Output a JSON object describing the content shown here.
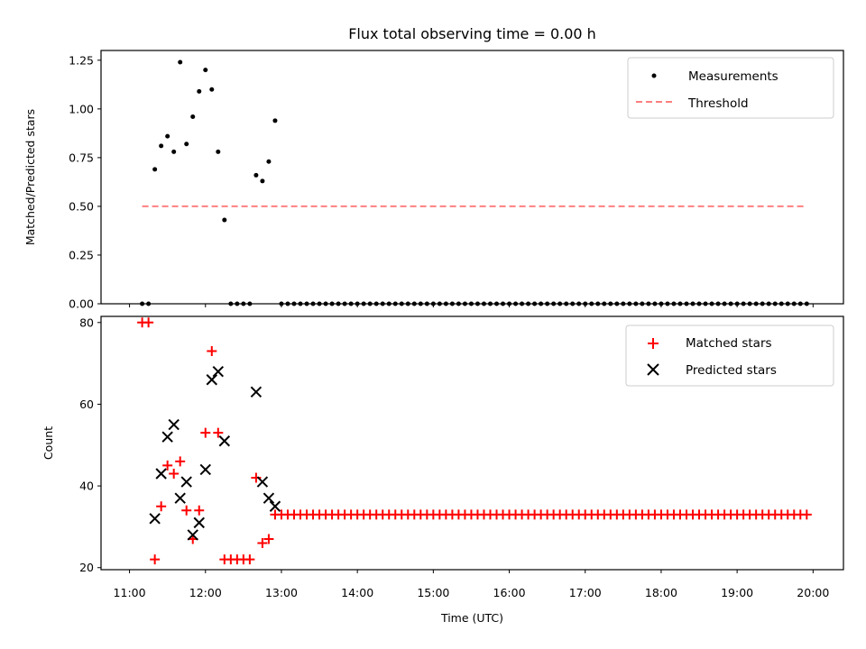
{
  "title": "Flux total observing time = 0.00 h",
  "xlabel": "Time (UTC)",
  "colors": {
    "matched": "#ff0000",
    "predicted": "#000000",
    "threshold": "#ff7f7f",
    "measurements": "#000000"
  },
  "chart_data": [
    {
      "type": "scatter",
      "ylabel": "Matched/Predicted stars",
      "ylim": [
        0,
        1.3
      ],
      "yticks": [
        "0.00",
        "0.25",
        "0.50",
        "0.75",
        "1.00",
        "1.25"
      ],
      "legend": "top-right",
      "series": [
        {
          "name": "Measurements",
          "x": [
            "11:10",
            "11:15",
            "11:20",
            "11:25",
            "11:30",
            "11:35",
            "11:40",
            "11:45",
            "11:50",
            "11:55",
            "12:00",
            "12:05",
            "12:10",
            "12:15",
            "12:20",
            "12:25",
            "12:30",
            "12:35",
            "12:40",
            "12:45",
            "12:50",
            "12:55",
            "13:00",
            "13:05",
            "13:10",
            "13:15",
            "13:20",
            "13:25",
            "13:30",
            "13:35",
            "13:40",
            "13:45",
            "13:50",
            "13:55",
            "14:00",
            "14:05",
            "14:10",
            "14:15",
            "14:20",
            "14:25",
            "14:30",
            "14:35",
            "14:40",
            "14:45",
            "14:50",
            "14:55",
            "15:00",
            "15:05",
            "15:10",
            "15:15",
            "15:20",
            "15:25",
            "15:30",
            "15:35",
            "15:40",
            "15:45",
            "15:50",
            "15:55",
            "16:00",
            "16:05",
            "16:10",
            "16:15",
            "16:20",
            "16:25",
            "16:30",
            "16:35",
            "16:40",
            "16:45",
            "16:50",
            "16:55",
            "17:00",
            "17:05",
            "17:10",
            "17:15",
            "17:20",
            "17:25",
            "17:30",
            "17:35",
            "17:40",
            "17:45",
            "17:50",
            "17:55",
            "18:00",
            "18:05",
            "18:10",
            "18:15",
            "18:20",
            "18:25",
            "18:30",
            "18:35",
            "18:40",
            "18:45",
            "18:50",
            "18:55",
            "19:00",
            "19:05",
            "19:10",
            "19:15",
            "19:20",
            "19:25",
            "19:30",
            "19:35",
            "19:40",
            "19:45",
            "19:50",
            "19:55"
          ],
          "y": [
            0,
            0,
            0.69,
            0.81,
            0.86,
            0.78,
            1.24,
            0.82,
            0.96,
            1.09,
            1.2,
            1.1,
            0.78,
            0.43,
            0,
            0,
            0,
            0,
            0.66,
            0.63,
            0.73,
            0.94,
            0,
            0,
            0,
            0,
            0,
            0,
            0,
            0,
            0,
            0,
            0,
            0,
            0,
            0,
            0,
            0,
            0,
            0,
            0,
            0,
            0,
            0,
            0,
            0,
            0,
            0,
            0,
            0,
            0,
            0,
            0,
            0,
            0,
            0,
            0,
            0,
            0,
            0,
            0,
            0,
            0,
            0,
            0,
            0,
            0,
            0,
            0,
            0,
            0,
            0,
            0,
            0,
            0,
            0,
            0,
            0,
            0,
            0,
            0,
            0,
            0,
            0,
            0,
            0,
            0,
            0,
            0,
            0,
            0,
            0,
            0,
            0,
            0,
            0,
            0,
            0,
            0,
            0,
            0,
            0,
            0,
            0,
            0,
            0
          ]
        },
        {
          "name": "Threshold",
          "x": [
            "11:10",
            "19:55"
          ],
          "y": [
            0.5,
            0.5
          ]
        }
      ]
    },
    {
      "type": "scatter",
      "ylabel": "Count",
      "ylim": [
        19.5,
        81.5
      ],
      "yticks": [
        "20",
        "40",
        "60",
        "80"
      ],
      "xticks": [
        "11:00",
        "12:00",
        "13:00",
        "14:00",
        "15:00",
        "16:00",
        "17:00",
        "18:00",
        "19:00",
        "20:00"
      ],
      "legend": "top-right",
      "series": [
        {
          "name": "Matched stars",
          "x": [
            "11:10",
            "11:15",
            "11:20",
            "11:25",
            "11:30",
            "11:35",
            "11:40",
            "11:45",
            "11:50",
            "11:55",
            "12:00",
            "12:05",
            "12:10",
            "12:15",
            "12:20",
            "12:25",
            "12:30",
            "12:35",
            "12:40",
            "12:45",
            "12:50",
            "12:55",
            "13:00",
            "13:05",
            "13:10",
            "13:15",
            "13:20",
            "13:25",
            "13:30",
            "13:35",
            "13:40",
            "13:45",
            "13:50",
            "13:55",
            "14:00",
            "14:05",
            "14:10",
            "14:15",
            "14:20",
            "14:25",
            "14:30",
            "14:35",
            "14:40",
            "14:45",
            "14:50",
            "14:55",
            "15:00",
            "15:05",
            "15:10",
            "15:15",
            "15:20",
            "15:25",
            "15:30",
            "15:35",
            "15:40",
            "15:45",
            "15:50",
            "15:55",
            "16:00",
            "16:05",
            "16:10",
            "16:15",
            "16:20",
            "16:25",
            "16:30",
            "16:35",
            "16:40",
            "16:45",
            "16:50",
            "16:55",
            "17:00",
            "17:05",
            "17:10",
            "17:15",
            "17:20",
            "17:25",
            "17:30",
            "17:35",
            "17:40",
            "17:45",
            "17:50",
            "17:55",
            "18:00",
            "18:05",
            "18:10",
            "18:15",
            "18:20",
            "18:25",
            "18:30",
            "18:35",
            "18:40",
            "18:45",
            "18:50",
            "18:55",
            "19:00",
            "19:05",
            "19:10",
            "19:15",
            "19:20",
            "19:25",
            "19:30",
            "19:35",
            "19:40",
            "19:45",
            "19:50",
            "19:55"
          ],
          "y": [
            80,
            80,
            22,
            35,
            45,
            43,
            46,
            34,
            27,
            34,
            53,
            73,
            53,
            22,
            22,
            22,
            22,
            22,
            42,
            26,
            27,
            33,
            33,
            33,
            33,
            33,
            33,
            33,
            33,
            33,
            33,
            33,
            33,
            33,
            33,
            33,
            33,
            33,
            33,
            33,
            33,
            33,
            33,
            33,
            33,
            33,
            33,
            33,
            33,
            33,
            33,
            33,
            33,
            33,
            33,
            33,
            33,
            33,
            33,
            33,
            33,
            33,
            33,
            33,
            33,
            33,
            33,
            33,
            33,
            33,
            33,
            33,
            33,
            33,
            33,
            33,
            33,
            33,
            33,
            33,
            33,
            33,
            33,
            33,
            33,
            33,
            33,
            33,
            33,
            33,
            33,
            33,
            33,
            33,
            33,
            33,
            33,
            33,
            33,
            33,
            33,
            33,
            33,
            33,
            33,
            33
          ]
        },
        {
          "name": "Predicted stars",
          "x": [
            "11:20",
            "11:25",
            "11:30",
            "11:35",
            "11:40",
            "11:45",
            "11:50",
            "11:55",
            "12:00",
            "12:05",
            "12:10",
            "12:15",
            "12:40",
            "12:45",
            "12:50",
            "12:55"
          ],
          "y": [
            32,
            43,
            52,
            55,
            37,
            41,
            28,
            31,
            44,
            66,
            68,
            51,
            63,
            41,
            37,
            35
          ]
        }
      ]
    }
  ]
}
